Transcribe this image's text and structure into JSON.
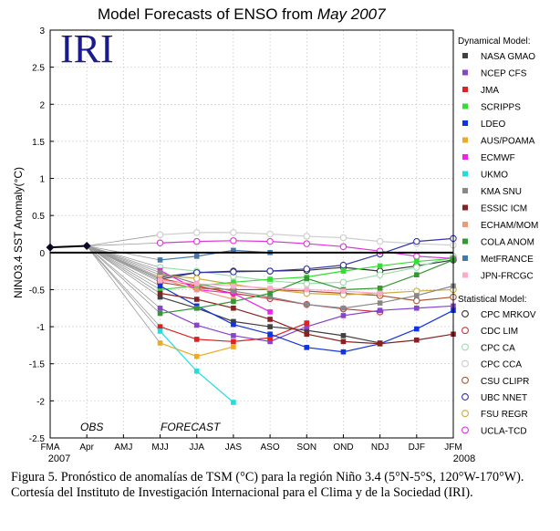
{
  "chart_data": {
    "type": "line",
    "title_prefix": "Model Forecasts of ENSO from",
    "title_month": "May 2007",
    "ylabel": "NINO3.4 SST Anomaly(°C)",
    "logo": "IRI",
    "x": [
      "FMA",
      "Apr",
      "AMJ",
      "MJJ",
      "JJA",
      "JAS",
      "ASO",
      "SON",
      "OND",
      "NDJ",
      "DJF",
      "JFM"
    ],
    "year_left": "2007",
    "year_right": "2008",
    "ylim": [
      -2.5,
      3
    ],
    "yticks": [
      "3",
      "2.5",
      "2",
      "1.5",
      "1",
      "0.5",
      "0",
      "-0.5",
      "-1",
      "-1.5",
      "-2",
      "-2.5"
    ],
    "ytick_values": [
      3,
      2.5,
      2,
      1.5,
      1,
      0.5,
      0,
      -0.5,
      -1,
      -1.5,
      -2,
      -2.5
    ],
    "grid": true,
    "text_obs": "OBS",
    "text_forecast": "FORECAST",
    "observed": [
      0.07,
      0.09
    ],
    "legend_dynamical_title": "Dynamical Model:",
    "legend_statistical_title": "Statistical Model:",
    "dynamical": [
      {
        "name": "NASA GMAO",
        "color": "#404040",
        "values": [
          null,
          null,
          null,
          -0.6,
          -0.75,
          -0.93,
          -1.0,
          -1.05,
          -1.12,
          -1.22,
          null,
          null
        ]
      },
      {
        "name": "NCEP CFS",
        "color": "#8844cc",
        "values": [
          null,
          null,
          null,
          -0.75,
          -0.98,
          -1.12,
          -1.2,
          -1.0,
          -0.85,
          -0.78,
          -0.75,
          -0.72
        ]
      },
      {
        "name": "JMA",
        "color": "#dd2222",
        "values": [
          null,
          null,
          null,
          -1.0,
          -1.17,
          -1.2,
          -1.15,
          -0.95,
          null,
          null,
          null,
          null
        ]
      },
      {
        "name": "SCRIPPS",
        "color": "#33dd33",
        "values": [
          null,
          null,
          null,
          -0.5,
          -0.45,
          -0.4,
          -0.36,
          -0.33,
          -0.25,
          -0.18,
          -0.12,
          -0.08
        ]
      },
      {
        "name": "LDEO",
        "color": "#1133dd",
        "values": [
          null,
          null,
          null,
          -0.45,
          -0.72,
          -0.97,
          -1.1,
          -1.28,
          -1.34,
          -1.23,
          -1.03,
          -0.78
        ]
      },
      {
        "name": "AUS/POAMA",
        "color": "#eeaa22",
        "values": [
          null,
          null,
          null,
          -1.22,
          -1.4,
          -1.27,
          null,
          null,
          null,
          null,
          null,
          null
        ]
      },
      {
        "name": "ECMWF",
        "color": "#ee22ee",
        "values": [
          null,
          null,
          null,
          -0.24,
          -0.5,
          -0.55,
          -0.8,
          null,
          null,
          null,
          null,
          null
        ]
      },
      {
        "name": "UKMO",
        "color": "#22dddd",
        "values": [
          null,
          null,
          null,
          -1.06,
          -1.6,
          -2.02,
          null,
          null,
          null,
          null,
          null,
          null
        ]
      },
      {
        "name": "KMA SNU",
        "color": "#888888",
        "values": [
          null,
          null,
          null,
          -0.27,
          -0.42,
          -0.52,
          -0.6,
          -0.7,
          -0.75,
          -0.68,
          -0.58,
          -0.45
        ]
      },
      {
        "name": "ESSIC ICM",
        "color": "#882222",
        "values": [
          null,
          null,
          null,
          -0.55,
          -0.63,
          -0.75,
          -0.9,
          -1.1,
          -1.2,
          -1.23,
          -1.18,
          -1.1
        ]
      },
      {
        "name": "ECHAM/MOM",
        "color": "#ee9977",
        "values": [
          null,
          null,
          null,
          -0.35,
          -0.5,
          -0.63,
          null,
          null,
          null,
          null,
          null,
          null
        ]
      },
      {
        "name": "COLA ANOM",
        "color": "#339933",
        "values": [
          null,
          null,
          null,
          -0.82,
          -0.75,
          -0.66,
          -0.55,
          -0.35,
          -0.5,
          -0.48,
          -0.3,
          -0.1
        ]
      },
      {
        "name": "MetFRANCE",
        "color": "#4477aa",
        "values": [
          null,
          null,
          null,
          -0.1,
          -0.05,
          0.03,
          0.0,
          null,
          null,
          null,
          null,
          null
        ]
      },
      {
        "name": "JPN-FRCGC",
        "color": "#ffaacc",
        "values": [
          null,
          null,
          null,
          -0.38,
          -0.42,
          -0.45,
          -0.48,
          -0.5,
          -0.52,
          -0.55,
          null,
          null
        ]
      }
    ],
    "statistical": [
      {
        "name": "CPC MRKOV",
        "color": "#333333",
        "values": [
          null,
          null,
          null,
          -0.36,
          -0.27,
          -0.25,
          -0.25,
          -0.24,
          -0.2,
          -0.25,
          -0.18,
          -0.1
        ]
      },
      {
        "name": "CDC LIM",
        "color": "#cc3333",
        "values": [
          null,
          null,
          null,
          -0.35,
          -0.45,
          -0.55,
          -0.62,
          -0.7,
          -0.76,
          -0.8,
          null,
          null
        ]
      },
      {
        "name": "CPC CA",
        "color": "#99ddaa",
        "values": [
          null,
          null,
          null,
          -0.2,
          -0.25,
          -0.32,
          -0.38,
          -0.42,
          -0.4,
          -0.3,
          -0.2,
          -0.05
        ]
      },
      {
        "name": "CPC CCA",
        "color": "#cccccc",
        "values": [
          null,
          null,
          null,
          0.24,
          0.27,
          0.27,
          0.25,
          0.22,
          0.2,
          0.15,
          0.12,
          0.1
        ]
      },
      {
        "name": "CSU CLIPR",
        "color": "#aa5533",
        "values": [
          null,
          null,
          null,
          -0.4,
          -0.48,
          -0.5,
          -0.5,
          -0.52,
          -0.55,
          -0.58,
          -0.65,
          -0.6
        ]
      },
      {
        "name": "UBC NNET",
        "color": "#3333aa",
        "values": [
          null,
          null,
          null,
          -0.33,
          -0.27,
          -0.26,
          -0.25,
          -0.22,
          -0.17,
          -0.02,
          0.15,
          0.19
        ]
      },
      {
        "name": "FSU REGR",
        "color": "#ccaa44",
        "values": [
          null,
          null,
          null,
          -0.3,
          -0.35,
          -0.43,
          -0.5,
          -0.55,
          -0.57,
          -0.55,
          -0.52,
          -0.5
        ]
      },
      {
        "name": "UCLA-TCD",
        "color": "#dd33dd",
        "values": [
          null,
          null,
          null,
          0.13,
          0.15,
          0.16,
          0.15,
          0.12,
          0.08,
          0.02,
          -0.05,
          -0.08
        ]
      }
    ]
  },
  "caption": "Figura 5. Pronóstico de anomalías de TSM (°C) para la región Niño 3.4 (5°N-5°S, 120°W-170°W). Cortesía del Instituto de Investigación Internacional para el Clima y de la Sociedad (IRI)."
}
